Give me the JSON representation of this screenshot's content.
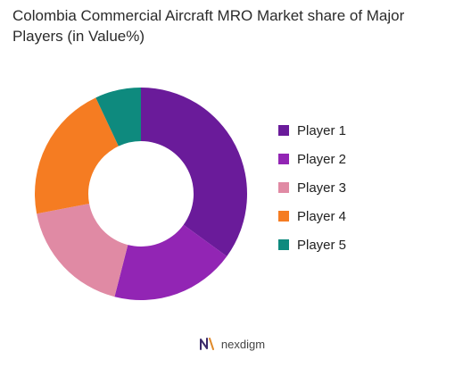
{
  "chart_data": {
    "type": "pie",
    "donut": true,
    "title": "Colombia Commercial Aircraft MRO Market share of Major Players (in Value%)",
    "categories": [
      "Player 1",
      "Player 2",
      "Player 3",
      "Player 4",
      "Player 5"
    ],
    "values": [
      35,
      19,
      18,
      21,
      7
    ],
    "colors": [
      "#6a1b9a",
      "#9225b4",
      "#e08aa4",
      "#f57c22",
      "#0e8a7e"
    ],
    "legend": "right"
  },
  "footer": {
    "brand": "nexdigm",
    "logo_icon": "nexdigm-logo-icon"
  }
}
